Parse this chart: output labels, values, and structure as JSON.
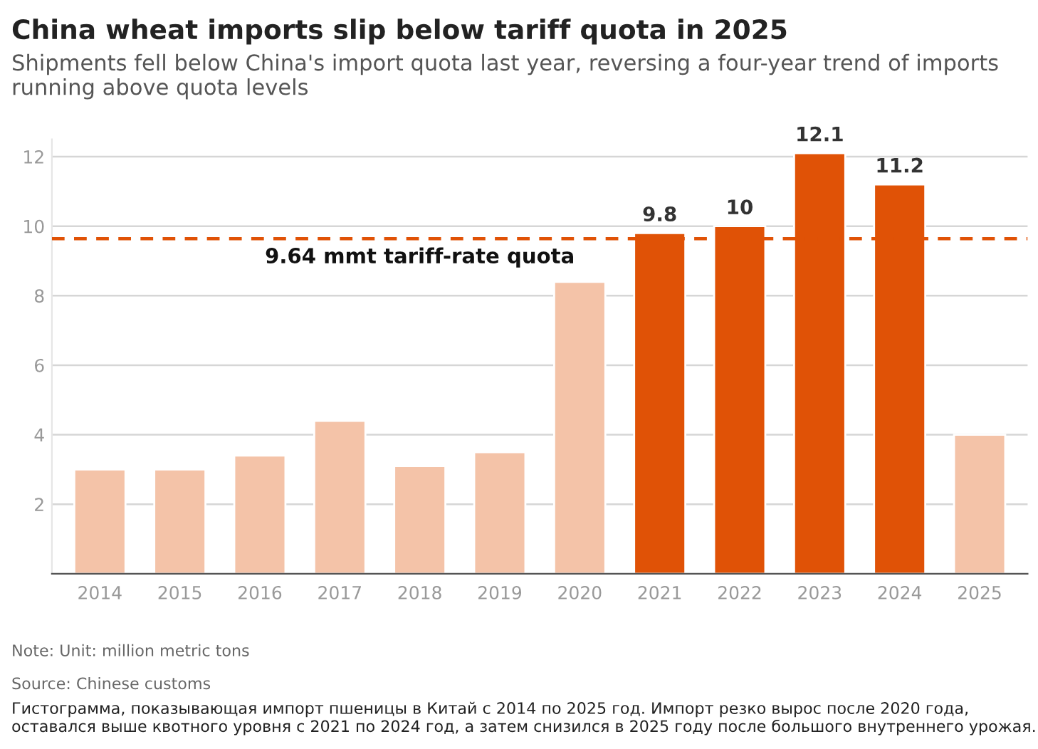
{
  "chart_data": {
    "type": "bar",
    "title": "China wheat imports slip below tariff quota in 2025",
    "subtitle": "Shipments fell below China's import quota last year, reversing a four-year trend of imports running above quota levels",
    "categories": [
      "2014",
      "2015",
      "2016",
      "2017",
      "2018",
      "2019",
      "2020",
      "2021",
      "2022",
      "2023",
      "2024",
      "2025"
    ],
    "values": [
      3.0,
      3.0,
      3.4,
      4.4,
      3.1,
      3.5,
      8.4,
      9.8,
      10,
      12.1,
      11.2,
      4.0
    ],
    "colors": [
      "#f4c3a8",
      "#f4c3a8",
      "#f4c3a8",
      "#f4c3a8",
      "#f4c3a8",
      "#f4c3a8",
      "#f4c3a8",
      "#e05206",
      "#e05206",
      "#e05206",
      "#e05206",
      "#f4c3a8"
    ],
    "value_labels": [
      null,
      null,
      null,
      null,
      null,
      null,
      null,
      "9.8",
      "10",
      "12.1",
      "11.2",
      null
    ],
    "ylim": [
      0,
      12.5
    ],
    "yticks": [
      2,
      4,
      6,
      8,
      10,
      12
    ],
    "grid": "y",
    "ref_lines": [
      {
        "axis": "y",
        "value": 9.64,
        "label": "9.64 mmt tariff-rate quota",
        "color": "#e05206",
        "line_style": "dashed"
      }
    ],
    "annotations": [
      "Note: Unit: million metric tons",
      "Source: Chinese customs",
      "Гистограмма, показывающая импорт пшеницы в Китай с 2014 по 2025 год. Импорт резко вырос после 2020 года, оставался выше квотного уровня с 2021 по 2024 год, а затем снизился в 2025 году после большого внутреннего урожая."
    ]
  }
}
